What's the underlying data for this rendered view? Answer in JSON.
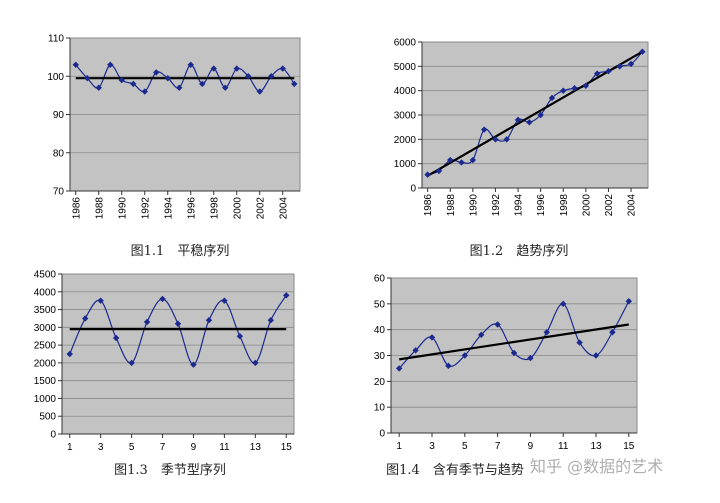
{
  "chart_data": [
    {
      "type": "line",
      "caption": "图1.1　平稳序列",
      "x_ticks": [
        "1986",
        "1988",
        "1990",
        "1992",
        "1994",
        "1996",
        "1998",
        "2000",
        "2002",
        "2004"
      ],
      "x": [
        1986,
        1987,
        1988,
        1989,
        1990,
        1991,
        1992,
        1993,
        1994,
        1995,
        1996,
        1997,
        1998,
        1999,
        2000,
        2001,
        2002,
        2003,
        2004,
        2005
      ],
      "values": [
        103,
        99.5,
        97,
        103,
        99,
        98,
        96,
        101,
        99.5,
        97,
        103,
        98,
        102,
        97,
        102,
        100,
        96,
        100,
        102,
        98
      ],
      "trend": [
        99.5,
        99.5
      ],
      "ylim": [
        70,
        110
      ],
      "y_ticks": [
        70,
        80,
        90,
        100,
        110
      ],
      "grid": true,
      "color": "#1b2a8f"
    },
    {
      "type": "line",
      "caption": "图1.2　趋势序列",
      "x_ticks": [
        "1986",
        "1988",
        "1990",
        "1992",
        "1994",
        "1996",
        "1998",
        "2000",
        "2002",
        "2004"
      ],
      "x": [
        1986,
        1987,
        1988,
        1989,
        1990,
        1991,
        1992,
        1993,
        1994,
        1995,
        1996,
        1997,
        1998,
        1999,
        2000,
        2001,
        2002,
        2003,
        2004,
        2005
      ],
      "values": [
        550,
        700,
        1150,
        1050,
        1150,
        2400,
        2000,
        2000,
        2800,
        2700,
        3000,
        3700,
        4000,
        4100,
        4200,
        4700,
        4800,
        5000,
        5100,
        5600
      ],
      "trend": [
        500,
        5600
      ],
      "ylim": [
        0,
        6000
      ],
      "y_ticks": [
        0,
        1000,
        2000,
        3000,
        4000,
        5000,
        6000
      ],
      "grid": true,
      "color": "#1b2a8f"
    },
    {
      "type": "line",
      "caption": "图1.3　季节型序列",
      "x_ticks": [
        "1",
        "3",
        "5",
        "7",
        "9",
        "11",
        "13",
        "15"
      ],
      "x": [
        1,
        2,
        3,
        4,
        5,
        6,
        7,
        8,
        9,
        10,
        11,
        12,
        13,
        14,
        15
      ],
      "values": [
        2250,
        3250,
        3750,
        2700,
        2000,
        3150,
        3800,
        3100,
        1950,
        3200,
        3750,
        2750,
        2000,
        3200,
        3900
      ],
      "trend": [
        2950,
        2950
      ],
      "ylim": [
        0,
        4500
      ],
      "y_ticks": [
        0,
        500,
        1000,
        1500,
        2000,
        2500,
        3000,
        3500,
        4000,
        4500
      ],
      "grid": true,
      "color": "#1b2a8f"
    },
    {
      "type": "line",
      "caption": "图1.4　含有季节与趋势",
      "x_ticks": [
        "1",
        "3",
        "5",
        "7",
        "9",
        "11",
        "13",
        "15"
      ],
      "x": [
        1,
        2,
        3,
        4,
        5,
        6,
        7,
        8,
        9,
        10,
        11,
        12,
        13,
        14,
        15
      ],
      "values": [
        25,
        32,
        37,
        26,
        30,
        38,
        42,
        31,
        29,
        39,
        50,
        35,
        30,
        39,
        51
      ],
      "trend": [
        28.5,
        42
      ],
      "ylim": [
        0,
        60
      ],
      "y_ticks": [
        0,
        10,
        20,
        30,
        40,
        50,
        60
      ],
      "grid": true,
      "color": "#1b2a8f"
    }
  ],
  "watermark": "知乎 @数据的艺术"
}
